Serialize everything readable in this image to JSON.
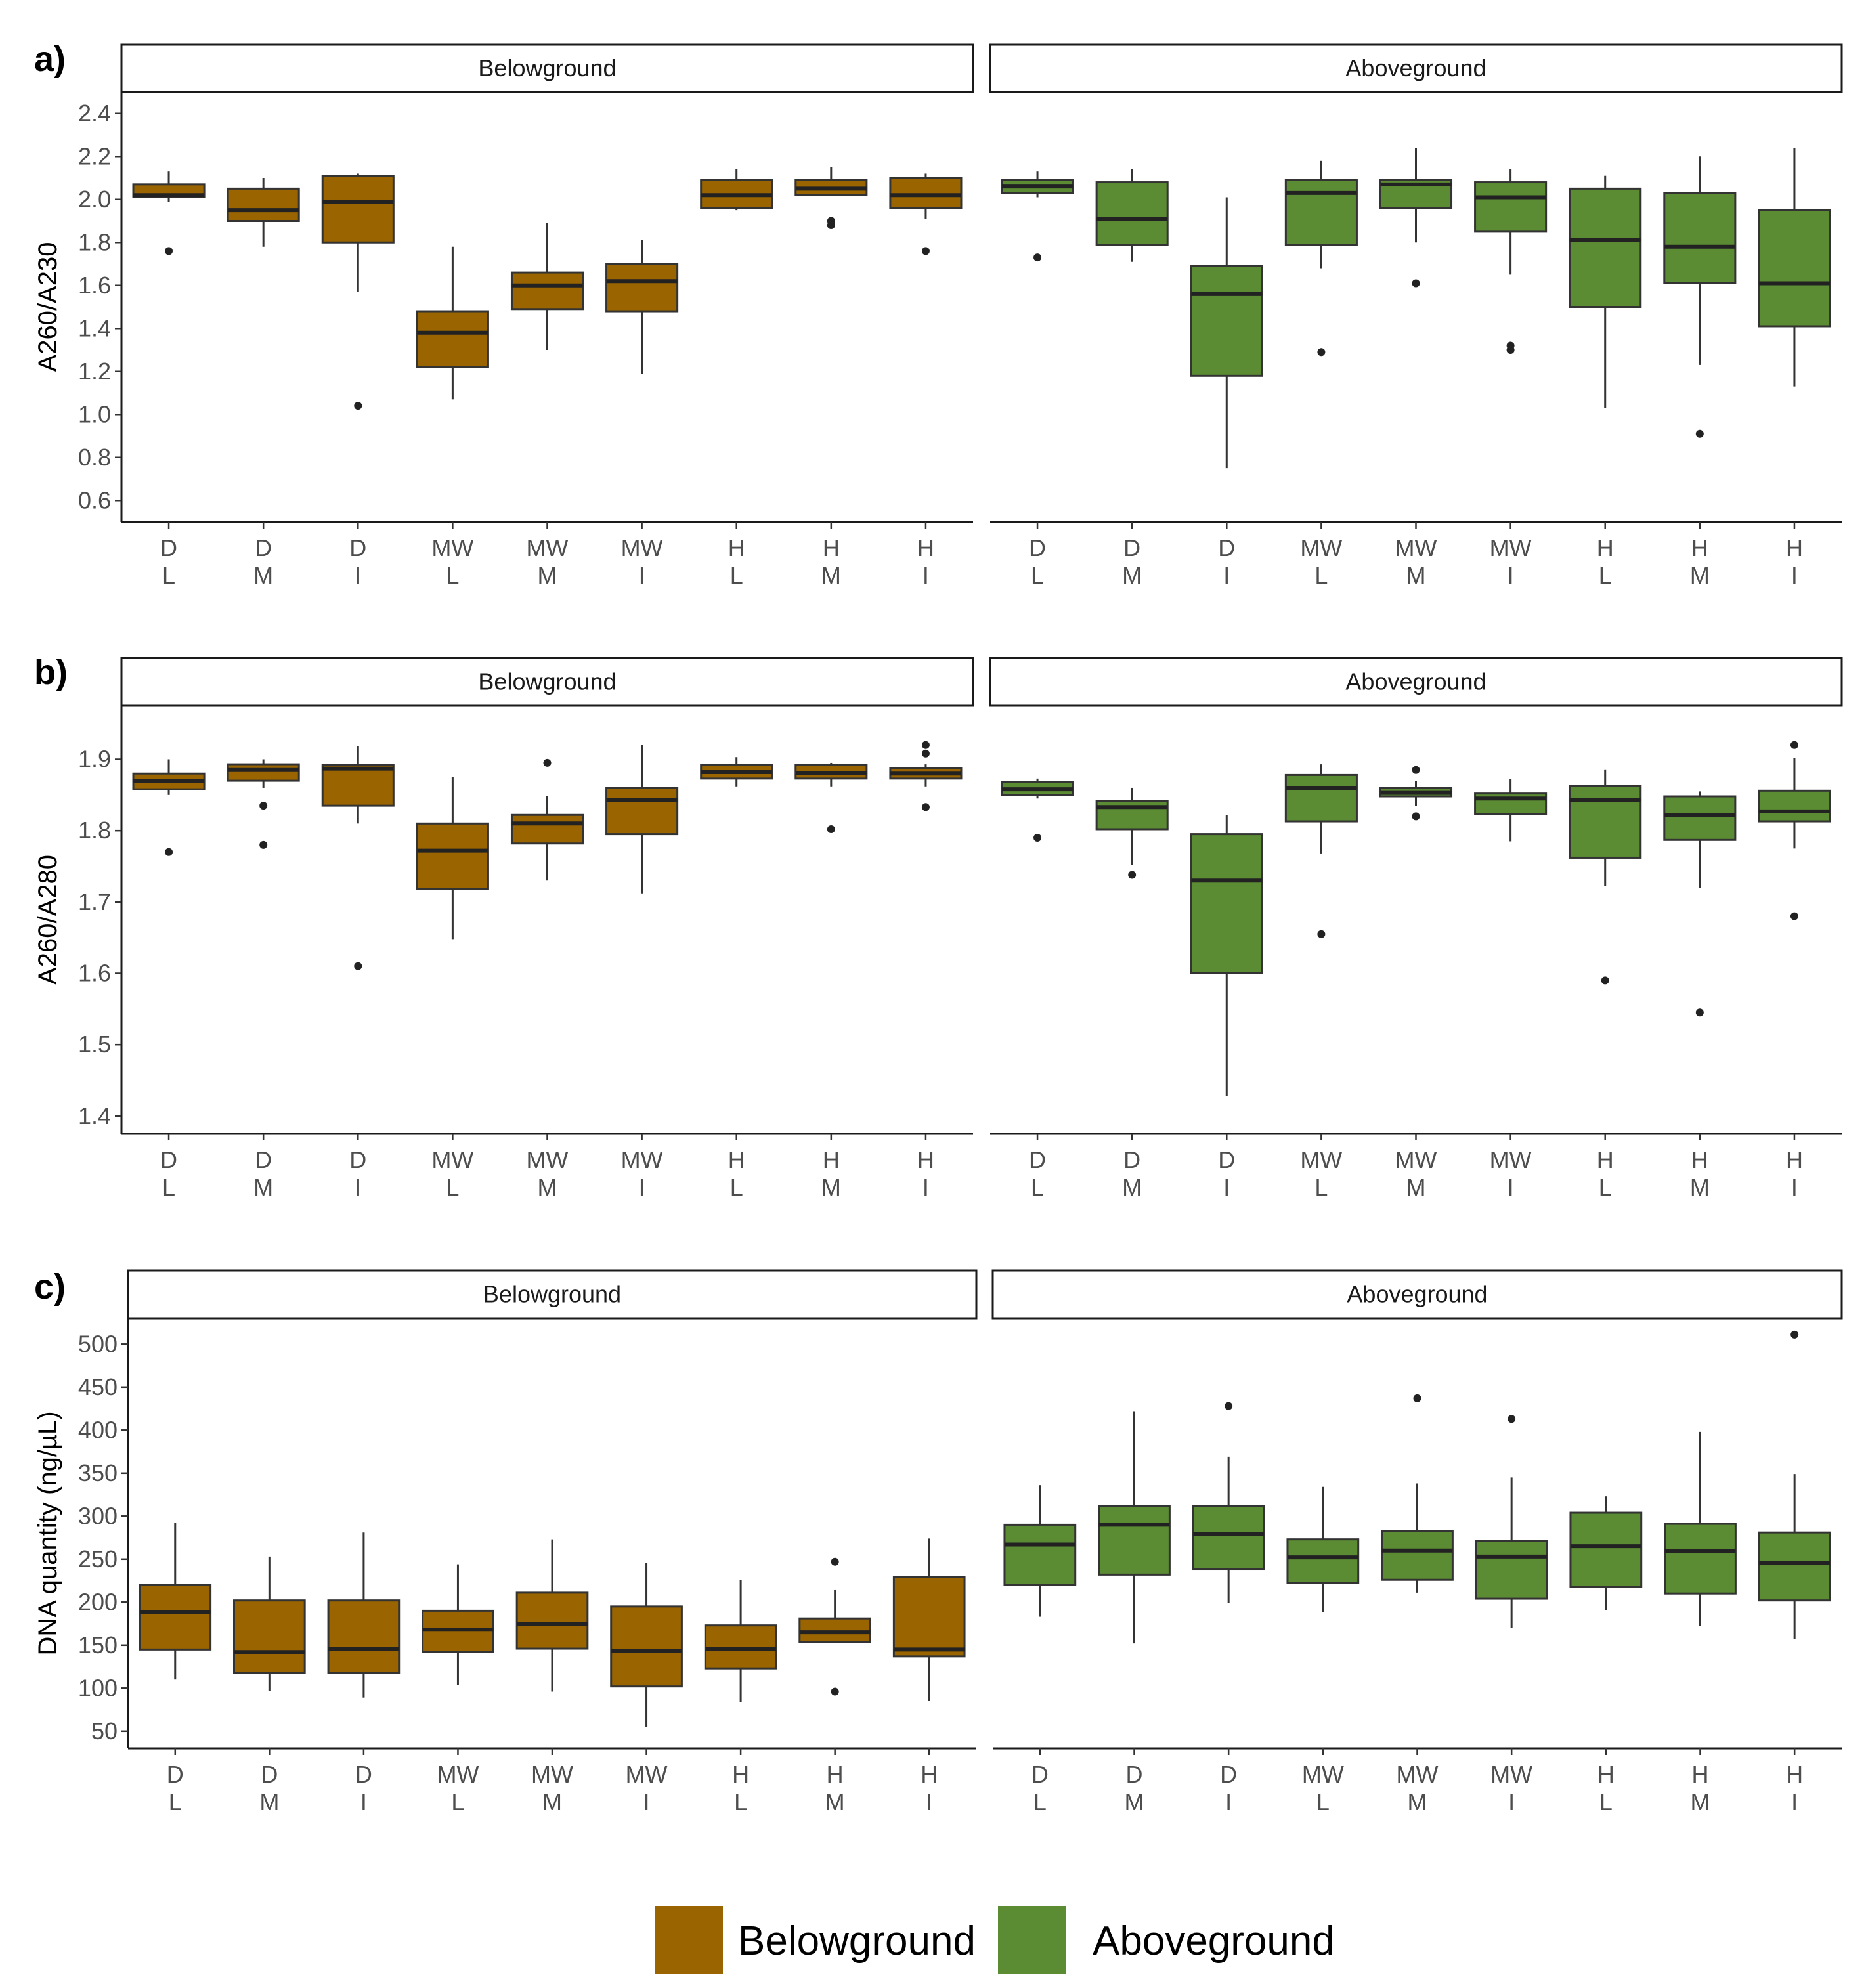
{
  "colors": {
    "Belowground": "#9a6500",
    "Aboveground": "#5b8c33",
    "median": "#222222",
    "outline": "#333333"
  },
  "categories": [
    [
      "D",
      "L"
    ],
    [
      "D",
      "M"
    ],
    [
      "D",
      "I"
    ],
    [
      "MW",
      "L"
    ],
    [
      "MW",
      "M"
    ],
    [
      "MW",
      "I"
    ],
    [
      "H",
      "L"
    ],
    [
      "H",
      "M"
    ],
    [
      "H",
      "I"
    ]
  ],
  "legend": [
    {
      "label": "Belowground",
      "color": "#9a6500"
    },
    {
      "label": "Aboveground",
      "color": "#5b8c33"
    }
  ],
  "chart_data": [
    {
      "type": "boxplot",
      "panel_label": "a)",
      "ylabel": "A260/A230",
      "ylim": [
        0.5,
        2.5
      ],
      "yticks": [
        "0.6",
        "0.8",
        "1.0",
        "1.2",
        "1.4",
        "1.6",
        "1.8",
        "2.0",
        "2.2",
        "2.4"
      ],
      "facets": [
        {
          "strip": "Belowground",
          "boxes": [
            {
              "q1": 2.01,
              "median": 2.02,
              "q3": 2.07,
              "wlo": 1.99,
              "whi": 2.13,
              "outliers": [
                1.76
              ]
            },
            {
              "q1": 1.9,
              "median": 1.95,
              "q3": 2.05,
              "wlo": 1.78,
              "whi": 2.1,
              "outliers": []
            },
            {
              "q1": 1.8,
              "median": 1.99,
              "q3": 2.11,
              "wlo": 1.57,
              "whi": 2.12,
              "outliers": [
                1.04
              ]
            },
            {
              "q1": 1.22,
              "median": 1.38,
              "q3": 1.48,
              "wlo": 1.07,
              "whi": 1.78,
              "outliers": []
            },
            {
              "q1": 1.49,
              "median": 1.6,
              "q3": 1.66,
              "wlo": 1.3,
              "whi": 1.89,
              "outliers": []
            },
            {
              "q1": 1.48,
              "median": 1.62,
              "q3": 1.7,
              "wlo": 1.19,
              "whi": 1.81,
              "outliers": []
            },
            {
              "q1": 1.96,
              "median": 2.02,
              "q3": 2.09,
              "wlo": 1.95,
              "whi": 2.14,
              "outliers": []
            },
            {
              "q1": 2.02,
              "median": 2.05,
              "q3": 2.09,
              "wlo": 2.02,
              "whi": 2.15,
              "outliers": [
                1.88,
                1.9
              ]
            },
            {
              "q1": 1.96,
              "median": 2.02,
              "q3": 2.1,
              "wlo": 1.91,
              "whi": 2.12,
              "outliers": [
                1.76
              ]
            }
          ]
        },
        {
          "strip": "Aboveground",
          "boxes": [
            {
              "q1": 2.03,
              "median": 2.06,
              "q3": 2.09,
              "wlo": 2.01,
              "whi": 2.13,
              "outliers": [
                1.73
              ]
            },
            {
              "q1": 1.79,
              "median": 1.91,
              "q3": 2.08,
              "wlo": 1.71,
              "whi": 2.14,
              "outliers": []
            },
            {
              "q1": 1.18,
              "median": 1.56,
              "q3": 1.69,
              "wlo": 0.75,
              "whi": 2.01,
              "outliers": []
            },
            {
              "q1": 1.79,
              "median": 2.03,
              "q3": 2.09,
              "wlo": 1.68,
              "whi": 2.18,
              "outliers": [
                1.29
              ]
            },
            {
              "q1": 1.96,
              "median": 2.07,
              "q3": 2.09,
              "wlo": 1.8,
              "whi": 2.24,
              "outliers": [
                1.61
              ]
            },
            {
              "q1": 1.85,
              "median": 2.01,
              "q3": 2.08,
              "wlo": 1.65,
              "whi": 2.14,
              "outliers": [
                1.3,
                1.32
              ]
            },
            {
              "q1": 1.5,
              "median": 1.81,
              "q3": 2.05,
              "wlo": 1.03,
              "whi": 2.11,
              "outliers": []
            },
            {
              "q1": 1.61,
              "median": 1.78,
              "q3": 2.03,
              "wlo": 1.23,
              "whi": 2.2,
              "outliers": [
                0.91
              ]
            },
            {
              "q1": 1.41,
              "median": 1.61,
              "q3": 1.95,
              "wlo": 1.13,
              "whi": 2.24,
              "outliers": []
            }
          ]
        }
      ]
    },
    {
      "type": "boxplot",
      "panel_label": "b)",
      "ylabel": "A260/A280",
      "ylim": [
        1.375,
        1.975
      ],
      "yticks": [
        "1.4",
        "1.5",
        "1.6",
        "1.7",
        "1.8",
        "1.9"
      ],
      "facets": [
        {
          "strip": "Belowground",
          "boxes": [
            {
              "q1": 1.858,
              "median": 1.87,
              "q3": 1.88,
              "wlo": 1.85,
              "whi": 1.9,
              "outliers": [
                1.77
              ]
            },
            {
              "q1": 1.87,
              "median": 1.885,
              "q3": 1.893,
              "wlo": 1.86,
              "whi": 1.9,
              "outliers": [
                1.78,
                1.835
              ]
            },
            {
              "q1": 1.835,
              "median": 1.887,
              "q3": 1.892,
              "wlo": 1.81,
              "whi": 1.918,
              "outliers": [
                1.61
              ]
            },
            {
              "q1": 1.718,
              "median": 1.772,
              "q3": 1.81,
              "wlo": 1.648,
              "whi": 1.875,
              "outliers": []
            },
            {
              "q1": 1.782,
              "median": 1.81,
              "q3": 1.822,
              "wlo": 1.73,
              "whi": 1.848,
              "outliers": [
                1.895
              ]
            },
            {
              "q1": 1.795,
              "median": 1.843,
              "q3": 1.86,
              "wlo": 1.712,
              "whi": 1.92,
              "outliers": []
            },
            {
              "q1": 1.873,
              "median": 1.882,
              "q3": 1.892,
              "wlo": 1.862,
              "whi": 1.903,
              "outliers": []
            },
            {
              "q1": 1.873,
              "median": 1.881,
              "q3": 1.892,
              "wlo": 1.862,
              "whi": 1.895,
              "outliers": [
                1.802
              ]
            },
            {
              "q1": 1.873,
              "median": 1.88,
              "q3": 1.888,
              "wlo": 1.862,
              "whi": 1.893,
              "outliers": [
                1.833,
                1.908,
                1.92
              ]
            }
          ]
        },
        {
          "strip": "Aboveground",
          "boxes": [
            {
              "q1": 1.85,
              "median": 1.858,
              "q3": 1.868,
              "wlo": 1.845,
              "whi": 1.873,
              "outliers": [
                1.79
              ]
            },
            {
              "q1": 1.802,
              "median": 1.833,
              "q3": 1.842,
              "wlo": 1.752,
              "whi": 1.86,
              "outliers": [
                1.738
              ]
            },
            {
              "q1": 1.6,
              "median": 1.73,
              "q3": 1.795,
              "wlo": 1.428,
              "whi": 1.822,
              "outliers": []
            },
            {
              "q1": 1.813,
              "median": 1.86,
              "q3": 1.878,
              "wlo": 1.768,
              "whi": 1.893,
              "outliers": [
                1.655
              ]
            },
            {
              "q1": 1.848,
              "median": 1.853,
              "q3": 1.86,
              "wlo": 1.835,
              "whi": 1.87,
              "outliers": [
                1.82,
                1.885
              ]
            },
            {
              "q1": 1.823,
              "median": 1.845,
              "q3": 1.852,
              "wlo": 1.785,
              "whi": 1.872,
              "outliers": []
            },
            {
              "q1": 1.762,
              "median": 1.843,
              "q3": 1.863,
              "wlo": 1.722,
              "whi": 1.885,
              "outliers": [
                1.59
              ]
            },
            {
              "q1": 1.787,
              "median": 1.822,
              "q3": 1.848,
              "wlo": 1.72,
              "whi": 1.855,
              "outliers": [
                1.545
              ]
            },
            {
              "q1": 1.813,
              "median": 1.827,
              "q3": 1.856,
              "wlo": 1.775,
              "whi": 1.902,
              "outliers": [
                1.68,
                1.92
              ]
            }
          ]
        }
      ]
    },
    {
      "type": "boxplot",
      "panel_label": "c)",
      "ylabel": "DNA quantity (ng/µL)",
      "ylim": [
        30,
        530
      ],
      "yticks": [
        "50",
        "100",
        "150",
        "200",
        "250",
        "300",
        "350",
        "400",
        "450",
        "500"
      ],
      "facets": [
        {
          "strip": "Belowground",
          "boxes": [
            {
              "q1": 145,
              "median": 188,
              "q3": 220,
              "wlo": 110,
              "whi": 292,
              "outliers": []
            },
            {
              "q1": 118,
              "median": 142,
              "q3": 202,
              "wlo": 97,
              "whi": 253,
              "outliers": []
            },
            {
              "q1": 118,
              "median": 146,
              "q3": 202,
              "wlo": 89,
              "whi": 281,
              "outliers": []
            },
            {
              "q1": 142,
              "median": 168,
              "q3": 190,
              "wlo": 104,
              "whi": 244,
              "outliers": []
            },
            {
              "q1": 146,
              "median": 175,
              "q3": 211,
              "wlo": 96,
              "whi": 273,
              "outliers": []
            },
            {
              "q1": 102,
              "median": 143,
              "q3": 195,
              "wlo": 55,
              "whi": 246,
              "outliers": []
            },
            {
              "q1": 123,
              "median": 146,
              "q3": 173,
              "wlo": 84,
              "whi": 226,
              "outliers": []
            },
            {
              "q1": 154,
              "median": 165,
              "q3": 181,
              "wlo": 154,
              "whi": 214,
              "outliers": [
                96,
                247
              ]
            },
            {
              "q1": 137,
              "median": 145,
              "q3": 229,
              "wlo": 85,
              "whi": 274,
              "outliers": []
            }
          ]
        },
        {
          "strip": "Aboveground",
          "boxes": [
            {
              "q1": 220,
              "median": 267,
              "q3": 290,
              "wlo": 183,
              "whi": 336,
              "outliers": []
            },
            {
              "q1": 232,
              "median": 290,
              "q3": 312,
              "wlo": 152,
              "whi": 422,
              "outliers": []
            },
            {
              "q1": 238,
              "median": 279,
              "q3": 312,
              "wlo": 199,
              "whi": 369,
              "outliers": [
                428
              ]
            },
            {
              "q1": 222,
              "median": 252,
              "q3": 273,
              "wlo": 188,
              "whi": 334,
              "outliers": []
            },
            {
              "q1": 226,
              "median": 260,
              "q3": 283,
              "wlo": 211,
              "whi": 338,
              "outliers": [
                437
              ]
            },
            {
              "q1": 204,
              "median": 253,
              "q3": 271,
              "wlo": 170,
              "whi": 345,
              "outliers": [
                413
              ]
            },
            {
              "q1": 218,
              "median": 265,
              "q3": 304,
              "wlo": 191,
              "whi": 323,
              "outliers": []
            },
            {
              "q1": 210,
              "median": 259,
              "q3": 291,
              "wlo": 172,
              "whi": 398,
              "outliers": []
            },
            {
              "q1": 202,
              "median": 246,
              "q3": 281,
              "wlo": 157,
              "whi": 349,
              "outliers": [
                511
              ]
            }
          ]
        }
      ]
    }
  ]
}
